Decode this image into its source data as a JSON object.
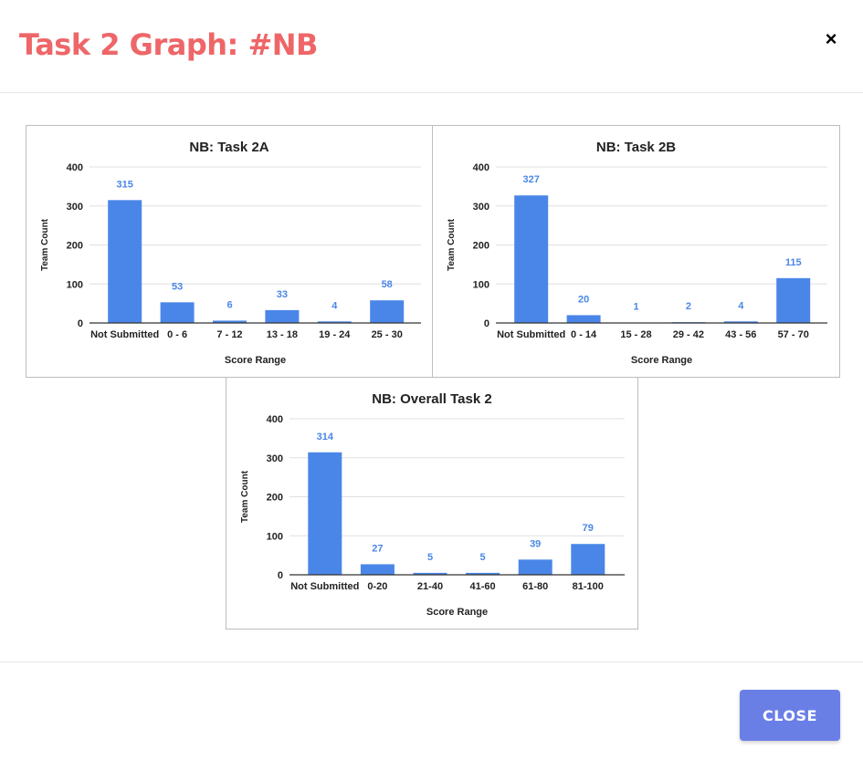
{
  "modal": {
    "title": "Task 2 Graph: #NB",
    "close_icon": "×",
    "close_button_label": "CLOSE"
  },
  "colors": {
    "title": "#ee6668",
    "bar": "#4a86e8",
    "data_label": "#4a86e8",
    "gridline": "#e0e0e0",
    "close_button": "#6a7fe6"
  },
  "chart_data": [
    {
      "type": "bar",
      "title": "NB: Task 2A",
      "xlabel": "Score Range",
      "ylabel": "Team Count",
      "categories": [
        "Not Submitted",
        "0 - 6",
        "7 - 12",
        "13 - 18",
        "19 - 24",
        "25 - 30"
      ],
      "values": [
        315,
        53,
        6,
        33,
        4,
        58
      ],
      "ylim": [
        0,
        400
      ],
      "yticks": [
        0,
        100,
        200,
        300,
        400
      ],
      "grid": true,
      "legend": "none"
    },
    {
      "type": "bar",
      "title": "NB: Task 2B",
      "xlabel": "Score Range",
      "ylabel": "Team Count",
      "categories": [
        "Not Submitted",
        "0 - 14",
        "15 - 28",
        "29 - 42",
        "43 - 56",
        "57 - 70"
      ],
      "values": [
        327,
        20,
        1,
        2,
        4,
        115
      ],
      "ylim": [
        0,
        400
      ],
      "yticks": [
        0,
        100,
        200,
        300,
        400
      ],
      "grid": true,
      "legend": "none"
    },
    {
      "type": "bar",
      "title": "NB: Overall Task 2",
      "xlabel": "Score Range",
      "ylabel": "Team Count",
      "categories": [
        "Not Submitted",
        "0-20",
        "21-40",
        "41-60",
        "61-80",
        "81-100"
      ],
      "values": [
        314,
        27,
        5,
        5,
        39,
        79
      ],
      "ylim": [
        0,
        400
      ],
      "yticks": [
        0,
        100,
        200,
        300,
        400
      ],
      "grid": true,
      "legend": "none"
    }
  ]
}
